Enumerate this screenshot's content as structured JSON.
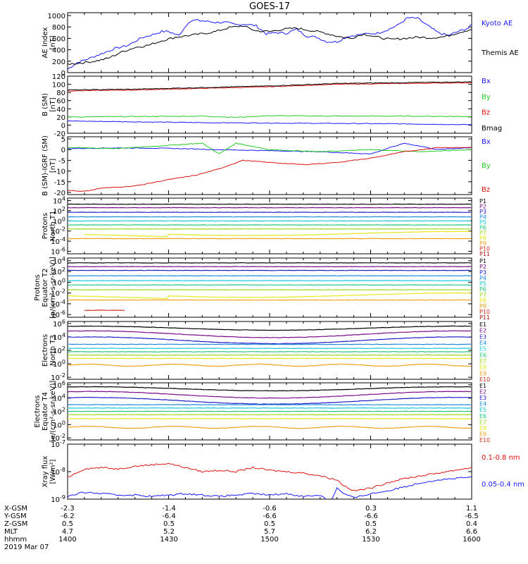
{
  "title": "GOES-17",
  "x_axis": {
    "tick_labels": [
      "1400",
      "1430",
      "1500",
      "1530",
      "1600"
    ],
    "rows": [
      {
        "name": "X-GSM",
        "values": [
          "-2.3",
          "-1.4",
          "-0.6",
          "0.3",
          "1.1"
        ]
      },
      {
        "name": "Y-GSM",
        "values": [
          "-6.2",
          "-6.4",
          "-6.6",
          "-6.6",
          "-6.5"
        ]
      },
      {
        "name": "Z-GSM",
        "values": [
          "0.5",
          "0.5",
          "0.5",
          "0.5",
          "0.4"
        ]
      },
      {
        "name": "MLT",
        "values": [
          "4.7",
          "5.2",
          "5.7",
          "6.2",
          "6.6"
        ]
      },
      {
        "name": "hhmm",
        "values": [
          "1400",
          "1430",
          "1500",
          "1530",
          "1600"
        ]
      }
    ],
    "date": "2019 Mar 07"
  },
  "colors": {
    "black": "#000000",
    "blue": "#1a1aff",
    "green": "#22cc22",
    "red": "#dd1111",
    "E": [
      "#000000",
      "#7a0c8a",
      "#2020c8",
      "#1a8be0",
      "#19c8d8",
      "#22c87a",
      "#9ed81a",
      "#e8e81a",
      "#f0a01a",
      "#d0301a",
      "#b01010"
    ],
    "P": [
      "#000000",
      "#7a0c8a",
      "#2020c8",
      "#1a8be0",
      "#19c8d8",
      "#22c87a",
      "#9ed81a",
      "#e8e81a",
      "#f0a01a",
      "#d0301a",
      "#b01010"
    ]
  },
  "chart_data": [
    {
      "type": "line",
      "ylabel": "AE Index\n[nT]",
      "yticks": [
        "0",
        "200",
        "400",
        "600",
        "800",
        "1000"
      ],
      "ylim": [
        0,
        1050
      ],
      "series": [
        {
          "name": "Kyoto AE",
          "color_key": "blue",
          "x": [
            1400,
            1403,
            1406,
            1410,
            1414,
            1418,
            1422,
            1426,
            1428,
            1430,
            1433,
            1436,
            1438,
            1441,
            1444,
            1447,
            1450,
            1453,
            1456,
            1459,
            1502,
            1505,
            1508,
            1511,
            1514,
            1517,
            1520,
            1523,
            1526,
            1529,
            1532,
            1535,
            1538,
            1541,
            1544,
            1547,
            1550,
            1553,
            1556,
            1559,
            1600
          ],
          "y": [
            60,
            180,
            240,
            330,
            420,
            480,
            610,
            680,
            720,
            720,
            650,
            890,
            920,
            900,
            880,
            880,
            840,
            850,
            820,
            680,
            700,
            690,
            760,
            640,
            620,
            540,
            540,
            630,
            660,
            680,
            690,
            750,
            830,
            960,
            950,
            820,
            700,
            650,
            720,
            780,
            840
          ]
        },
        {
          "name": "Themis AE",
          "color_key": "black",
          "x": [
            1400,
            1404,
            1408,
            1412,
            1416,
            1420,
            1424,
            1428,
            1432,
            1436,
            1440,
            1444,
            1448,
            1452,
            1456,
            1500,
            1504,
            1508,
            1512,
            1516,
            1520,
            1524,
            1528,
            1532,
            1536,
            1540,
            1544,
            1548,
            1552,
            1556,
            1600
          ],
          "y": [
            150,
            170,
            200,
            250,
            360,
            440,
            480,
            560,
            620,
            650,
            680,
            720,
            790,
            820,
            730,
            720,
            760,
            780,
            740,
            700,
            640,
            600,
            680,
            620,
            580,
            600,
            620,
            610,
            630,
            700,
            760
          ]
        }
      ]
    },
    {
      "type": "line",
      "ylabel": "B (SM)\n[nT]",
      "yticks": [
        "-20",
        "0",
        "20",
        "40",
        "60",
        "80",
        "100",
        "120"
      ],
      "ylim": [
        -20,
        120
      ],
      "series": [
        {
          "name": "Bx",
          "color_key": "blue",
          "x": [
            1400,
            1420,
            1440,
            1500,
            1520,
            1540,
            1600
          ],
          "y": [
            10,
            8,
            6,
            5,
            4,
            3,
            1
          ]
        },
        {
          "name": "By",
          "color_key": "green",
          "x": [
            1400,
            1420,
            1440,
            1450,
            1500,
            1520,
            1540,
            1600
          ],
          "y": [
            20,
            21,
            22,
            19,
            23,
            22,
            22,
            21
          ]
        },
        {
          "name": "Bz",
          "color_key": "red",
          "x": [
            1400,
            1420,
            1440,
            1500,
            1520,
            1540,
            1600
          ],
          "y": [
            84,
            86,
            90,
            94,
            100,
            102,
            104
          ]
        },
        {
          "name": "Bmag",
          "color_key": "black",
          "x": [
            1400,
            1420,
            1440,
            1500,
            1520,
            1540,
            1600
          ],
          "y": [
            86,
            88,
            92,
            96,
            102,
            104,
            106
          ]
        }
      ]
    },
    {
      "type": "line",
      "ylabel": "B (SM)-IGRF (SM)\n[nT]",
      "yticks": [
        "-20",
        "-15",
        "-10",
        "-5",
        "0",
        "5"
      ],
      "ylim": [
        -21,
        6
      ],
      "series": [
        {
          "name": "Bx",
          "color_key": "blue",
          "x": [
            1400,
            1415,
            1430,
            1445,
            1500,
            1515,
            1530,
            1540,
            1550,
            1600
          ],
          "y": [
            0.5,
            0.8,
            0.6,
            0,
            -0.5,
            -1,
            -2,
            3,
            0,
            1
          ]
        },
        {
          "name": "By",
          "color_key": "green",
          "x": [
            1400,
            1415,
            1430,
            1440,
            1445,
            1450,
            1500,
            1515,
            1530,
            1545,
            1600
          ],
          "y": [
            1,
            0.5,
            2,
            3,
            -2,
            3,
            0,
            -1,
            0,
            -1,
            0
          ]
        },
        {
          "name": "Bz",
          "color_key": "red",
          "x": [
            1400,
            1405,
            1410,
            1420,
            1430,
            1438,
            1445,
            1452,
            1500,
            1510,
            1520,
            1530,
            1540,
            1550,
            1600
          ],
          "y": [
            -19,
            -19.5,
            -18,
            -17,
            -14,
            -12,
            -9,
            -5,
            -6,
            -7,
            -6,
            -4,
            -1,
            1,
            1
          ]
        }
      ]
    },
    {
      "type": "line",
      "scale": "log",
      "ylabel": "Protons\nNorth T1",
      "yticks": [
        "10^-6",
        "10^-4",
        "10^-2",
        "10^0",
        "10^2",
        "10^4"
      ],
      "ylim_exp": [
        -6.5,
        4.5
      ],
      "series_labels": [
        "P1",
        "P2",
        "P3",
        "P4",
        "P5",
        "P6",
        "P7",
        "P8",
        "P9",
        "P10",
        "P11"
      ],
      "levels": [
        3.3,
        2.6,
        1.7,
        0.8,
        0.0,
        -0.8,
        -1.6,
        -2.5,
        -3.5,
        null,
        null
      ]
    },
    {
      "type": "line",
      "scale": "log",
      "ylabel": "Protons\nEquator T2\n[p/(cm²-s-sr-keV)]",
      "yticks": [
        "10^-6",
        "10^-4",
        "10^-2",
        "10^0",
        "10^2",
        "10^4"
      ],
      "ylim_exp": [
        -6.5,
        4.5
      ],
      "series_labels": [
        "P1",
        "P2",
        "P3",
        "P4",
        "P5",
        "P6",
        "P7",
        "P8",
        "P9",
        "P10",
        "P11"
      ],
      "levels": [
        3.6,
        2.9,
        2.2,
        1.2,
        0.3,
        -0.5,
        -1.4,
        -2.4,
        -3.3,
        -5.2,
        null
      ]
    },
    {
      "type": "line",
      "scale": "log",
      "ylabel": "Electrons\nNorth T3",
      "yticks": [
        "10^-2",
        "10^0",
        "10^2",
        "10^4",
        "10^6"
      ],
      "ylim_exp": [
        -2.3,
        6.3
      ],
      "series_labels": [
        "E1",
        "E2",
        "E3",
        "E4",
        "E5",
        "E6",
        "E7",
        "E8",
        "E9",
        "E10"
      ],
      "levels": [
        5.3,
        4.4,
        3.5,
        2.9,
        2.3,
        1.8,
        1.3,
        0.8,
        -0.2,
        null
      ]
    },
    {
      "type": "line",
      "scale": "log",
      "ylabel": "Electrons\nEquator T4\n[e/(cm²-s-sr-keV)]",
      "yticks": [
        "10^-2",
        "10^0",
        "10^2",
        "10^4",
        "10^6"
      ],
      "ylim_exp": [
        -2.3,
        6.3
      ],
      "series_labels": [
        "E1",
        "E2",
        "E3",
        "E4",
        "E5",
        "E6",
        "E7",
        "E8",
        "E9",
        "E10"
      ],
      "levels": [
        5.4,
        4.5,
        3.6,
        3.0,
        2.5,
        2.0,
        1.5,
        0.9,
        -0.4,
        null
      ]
    },
    {
      "type": "line",
      "scale": "log",
      "ylabel": "Xray flux\n[W/m²]",
      "yticks": [
        "10^-9",
        "10^-8",
        "10^-7"
      ],
      "ylim_exp": [
        -9,
        -7
      ],
      "series": [
        {
          "name": "0.1-0.8 nm",
          "color_key": "red",
          "x": [
            1400,
            1405,
            1410,
            1415,
            1420,
            1425,
            1430,
            1435,
            1440,
            1445,
            1450,
            1455,
            1500,
            1505,
            1510,
            1515,
            1520,
            1522,
            1525,
            1530,
            1535,
            1540,
            1545,
            1550,
            1555,
            1600
          ],
          "y_exp": [
            -8.2,
            -7.9,
            -7.85,
            -7.9,
            -7.8,
            -7.75,
            -7.7,
            -7.85,
            -8.0,
            -7.95,
            -8.0,
            -7.85,
            -7.95,
            -8.0,
            -8.05,
            -8.15,
            -8.3,
            -8.5,
            -8.7,
            -8.6,
            -8.4,
            -8.25,
            -8.15,
            -8.05,
            -7.95,
            -7.85
          ]
        },
        {
          "name": "0.05-0.4 nm",
          "color_key": "blue",
          "x": [
            1400,
            1405,
            1410,
            1415,
            1420,
            1425,
            1430,
            1435,
            1440,
            1445,
            1450,
            1455,
            1500,
            1505,
            1510,
            1515,
            1518,
            1520,
            1522,
            1525,
            1530,
            1535,
            1540,
            1545,
            1550,
            1555,
            1600
          ],
          "y_exp": [
            -8.9,
            -8.75,
            -8.8,
            -8.85,
            -8.85,
            -8.9,
            -8.85,
            -8.8,
            -8.85,
            -8.9,
            -8.85,
            -8.8,
            -8.85,
            -8.8,
            -8.9,
            -8.85,
            -9.1,
            -8.6,
            -8.8,
            -8.95,
            -8.8,
            -8.7,
            -8.55,
            -8.4,
            -8.3,
            -8.25,
            -8.2
          ]
        }
      ]
    }
  ]
}
